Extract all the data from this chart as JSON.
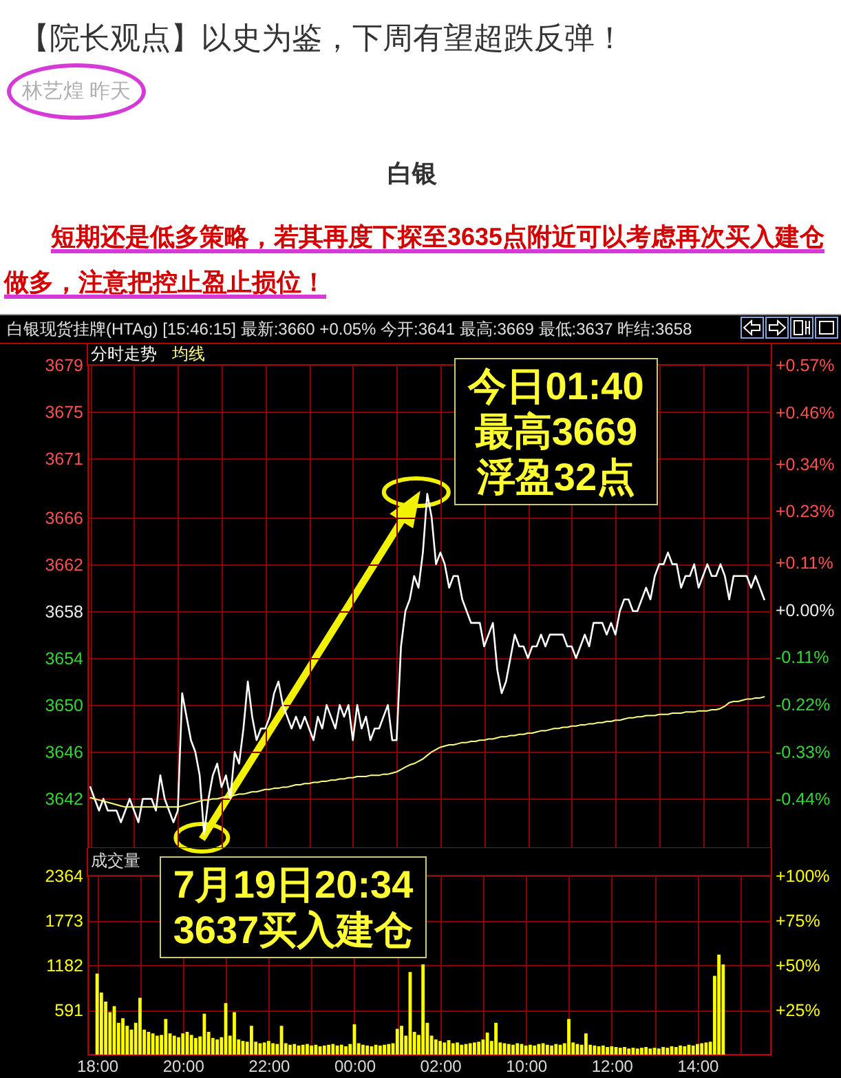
{
  "chart_data": [
    {
      "type": "line",
      "title": "【院长观点】以史为鉴，下周有望超跌反弹！",
      "subtitle": "白银",
      "annotations": [
        "林艺煌 昨天",
        "短期还是低多策略，若其再度下探至3635点附近可以考虑再次买入建仓做多，注意把控止盈止损位！",
        "白银现货挂牌(HTAg) [15:46:15] 最新:3660 +0.05% 今开:3641 最高:3669 最低:3637 昨结:3658",
        "今日01:40\n最高3669\n浮盈32点",
        "7月19日20:34\n3637买入建仓"
      ],
      "categories": [
        null,
        null,
        null,
        null,
        null,
        null,
        null,
        null,
        null,
        null,
        null,
        null,
        null,
        null,
        null,
        null,
        null,
        null,
        null,
        null,
        null,
        null,
        null,
        null,
        null,
        null,
        null,
        null,
        null,
        null,
        null,
        null,
        null,
        null,
        null,
        null,
        null,
        null,
        null,
        null,
        null,
        null,
        null,
        null,
        null,
        null,
        null,
        null,
        null,
        null,
        null,
        null,
        null,
        null,
        null,
        null,
        null,
        null,
        null,
        null,
        null,
        null,
        null,
        null,
        null,
        null,
        null,
        null,
        null,
        null,
        null,
        null,
        null,
        null,
        null,
        null,
        null,
        null,
        null,
        null,
        null,
        null,
        null,
        null,
        null,
        null,
        null,
        null,
        null,
        null,
        null,
        null,
        null,
        null,
        null,
        null,
        null,
        null,
        null,
        null,
        null,
        null,
        null,
        null,
        null,
        null,
        null,
        null,
        null,
        null,
        null,
        null,
        null,
        null,
        null,
        null,
        null,
        null,
        null,
        null,
        null,
        null,
        null,
        null,
        null,
        null,
        null,
        null,
        null,
        null,
        null,
        null,
        null,
        null,
        null,
        null,
        null,
        null,
        null,
        null,
        null,
        null,
        null,
        null,
        null,
        null,
        null,
        null,
        null,
        null,
        null,
        null,
        null,
        null,
        null,
        null
      ],
      "series": [
        {
          "name": "分时走势",
          "color": "#ffffff",
          "values": [
            3643,
            3642,
            3641,
            3642,
            3641,
            3641,
            3641,
            3640,
            3641,
            3642,
            3641,
            3640,
            3642,
            3642,
            3642,
            3641,
            3644,
            3642,
            3641,
            3640,
            3641,
            3651,
            3649,
            3647,
            3646,
            3644,
            3639,
            3642,
            3644,
            3645,
            3643,
            3644,
            3642,
            3646,
            3645,
            3648,
            3652,
            3649,
            3647,
            3648,
            3648,
            3649,
            3651,
            3652,
            3650,
            3649,
            3648,
            3649,
            3648,
            3649,
            3648,
            3647,
            3649,
            3648,
            3650,
            3649,
            3648,
            3650,
            3649,
            3650,
            3647,
            3650,
            3648,
            3649,
            3647,
            3648,
            3648,
            3649,
            3650,
            3647,
            3647,
            3655,
            3658,
            3659,
            3661,
            3660,
            3663,
            3668,
            3666,
            3662,
            3663,
            3662,
            3660,
            3661,
            3661,
            3659,
            3658,
            3657,
            3657,
            3657,
            3655,
            3656,
            3657,
            3653,
            3651,
            3652,
            3654,
            3656,
            3655,
            3655,
            3654,
            3655,
            3655,
            3656,
            3655,
            3656,
            3656,
            3656,
            3656,
            3655,
            3655,
            3654,
            3655,
            3656,
            3655,
            3657,
            3657,
            3657,
            3656,
            3657,
            3656,
            3658,
            3659,
            3659,
            3658,
            3658,
            3659,
            3660,
            3659,
            3661,
            3662,
            3662,
            3663,
            3662,
            3662,
            3660,
            3661,
            3661,
            3662,
            3660,
            3661,
            3662,
            3661,
            3661,
            3662,
            3661,
            3659,
            3661,
            3661,
            3661,
            3661,
            3660,
            3661,
            3660,
            3659,
            null
          ]
        },
        {
          "name": "均线",
          "color": "#ffff80",
          "values": [
            3642.1,
            3642,
            3641.9,
            3641.8,
            3641.7,
            3641.6,
            3641.5,
            3641.4,
            3641.3,
            3641.3,
            3641.3,
            3641.3,
            3641.3,
            3641.3,
            3641.3,
            3641.3,
            3641.3,
            3641.3,
            3641.3,
            3641.3,
            3641.3,
            3641.4,
            3641.5,
            3641.6,
            3641.7,
            3641.8,
            3641.9,
            3641.9,
            3642,
            3642,
            3642.1,
            3642.2,
            3642.2,
            3642.3,
            3642.4,
            3642.4,
            3642.5,
            3642.6,
            3642.6,
            3642.7,
            3642.8,
            3642.8,
            3642.9,
            3642.9,
            3643,
            3643,
            3643.1,
            3643.2,
            3643.2,
            3643.3,
            3643.3,
            3643.4,
            3643.4,
            3643.5,
            3643.5,
            3643.6,
            3643.6,
            3643.7,
            3643.7,
            3643.8,
            3643.8,
            3643.9,
            3643.9,
            3643.9,
            3644,
            3644,
            3644,
            3644.1,
            3644.1,
            3644.2,
            3644.3,
            3644.5,
            3644.7,
            3644.9,
            3645,
            3645.2,
            3645.4,
            3645.7,
            3646,
            3646.2,
            3646.4,
            3646.5,
            3646.6,
            3646.6,
            3646.7,
            3646.8,
            3646.8,
            3646.9,
            3646.9,
            3647,
            3647,
            3647.1,
            3647.1,
            3647.2,
            3647.3,
            3647.3,
            3647.4,
            3647.4,
            3647.5,
            3647.5,
            3647.6,
            3647.6,
            3647.7,
            3647.8,
            3647.8,
            3647.9,
            3648,
            3648,
            3648.1,
            3648.1,
            3648.2,
            3648.2,
            3648.3,
            3648.3,
            3648.4,
            3648.4,
            3648.5,
            3648.5,
            3648.6,
            3648.6,
            3648.7,
            3648.7,
            3648.8,
            3648.9,
            3648.9,
            3649,
            3649,
            3649.1,
            3649.1,
            3649.1,
            3649.2,
            3649.2,
            3649.2,
            3649.3,
            3649.3,
            3649.3,
            3649.4,
            3649.4,
            3649.4,
            3649.5,
            3649.5,
            3649.5,
            3649.6,
            3649.6,
            3649.7,
            3649.9,
            3650.2,
            3650.3,
            3650.3,
            3650.4,
            3650.5,
            3650.5,
            3650.6,
            3650.6,
            3650.7,
            null
          ]
        }
      ],
      "ylim": [
        3637.8,
        3679
      ],
      "yticks": [
        3642,
        3646,
        3650,
        3654,
        3658,
        3662,
        3666,
        3671,
        3675,
        3679
      ],
      "y2lim": [
        -0.5547,
        0.57
      ],
      "y2ticks": [
        {
          "value": -0.44,
          "label": "-0.44%"
        },
        {
          "value": -0.33,
          "label": "-0.33%"
        },
        {
          "value": -0.22,
          "label": "-0.22%"
        },
        {
          "value": -0.11,
          "label": "-0.11%"
        },
        {
          "value": 0,
          "label": "+0.00%"
        },
        {
          "value": 0.11,
          "label": "+0.11%"
        },
        {
          "value": 0.23,
          "label": "+0.23%"
        },
        {
          "value": 0.34,
          "label": "+0.34%"
        },
        {
          "value": 0.46,
          "label": "+0.46%"
        },
        {
          "value": 0.57,
          "label": "+0.57%"
        }
      ],
      "grid": true,
      "legend": "top left",
      "tick_labels": "y"
    },
    {
      "type": "bar",
      "title": "成交量",
      "color": "#ffff00",
      "categories": [
        "18:00",
        null,
        null,
        null,
        null,
        null,
        null,
        null,
        null,
        null,
        null,
        null,
        null,
        null,
        null,
        null,
        null,
        null,
        null,
        null,
        "20:00",
        null,
        null,
        null,
        null,
        null,
        null,
        null,
        null,
        null,
        null,
        null,
        null,
        null,
        null,
        null,
        null,
        null,
        null,
        null,
        "22:00",
        null,
        null,
        null,
        null,
        null,
        null,
        null,
        null,
        null,
        null,
        null,
        null,
        null,
        null,
        null,
        null,
        null,
        null,
        null,
        "00:00",
        null,
        null,
        null,
        null,
        null,
        null,
        null,
        null,
        null,
        null,
        null,
        null,
        null,
        null,
        null,
        null,
        null,
        null,
        null,
        "02:00",
        null,
        null,
        null,
        null,
        null,
        null,
        null,
        null,
        null,
        null,
        null,
        null,
        null,
        null,
        null,
        null,
        null,
        null,
        null,
        "10:00",
        null,
        null,
        null,
        null,
        null,
        null,
        null,
        null,
        null,
        null,
        null,
        null,
        null,
        null,
        null,
        null,
        null,
        null,
        null,
        "12:00",
        null,
        null,
        null,
        null,
        null,
        null,
        null,
        null,
        null,
        null,
        null,
        null,
        null,
        null,
        null,
        null,
        null,
        null,
        null,
        "14:00",
        null,
        null,
        null,
        null,
        null,
        null,
        null,
        null,
        null,
        null,
        null,
        null,
        null,
        null,
        null
      ],
      "values": [
        1070,
        820,
        700,
        560,
        640,
        420,
        480,
        380,
        330,
        420,
        750,
        330,
        300,
        280,
        250,
        260,
        470,
        280,
        250,
        230,
        280,
        300,
        260,
        220,
        240,
        540,
        300,
        220,
        200,
        230,
        680,
        250,
        560,
        200,
        180,
        170,
        380,
        170,
        150,
        160,
        180,
        150,
        140,
        380,
        150,
        130,
        140,
        120,
        130,
        140,
        120,
        130,
        110,
        120,
        130,
        140,
        120,
        130,
        110,
        140,
        400,
        150,
        130,
        120,
        110,
        130,
        120,
        130,
        140,
        150,
        340,
        380,
        250,
        1090,
        300,
        260,
        1190,
        420,
        250,
        200,
        180,
        160,
        190,
        150,
        160,
        130,
        140,
        150,
        160,
        170,
        200,
        290,
        180,
        420,
        160,
        150,
        140,
        130,
        150,
        140,
        120,
        130,
        120,
        140,
        150,
        130,
        120,
        140,
        130,
        150,
        470,
        160,
        140,
        130,
        280,
        130,
        120,
        110,
        120,
        100,
        110,
        100,
        90,
        100,
        80,
        90,
        80,
        90,
        100,
        80,
        90,
        80,
        100,
        90,
        110,
        100,
        120,
        110,
        130,
        120,
        140,
        150,
        160,
        170,
        1040,
        1320,
        1190,
        null,
        null,
        null,
        null,
        null,
        null,
        null,
        null,
        null
      ],
      "ylim": [
        0,
        2364
      ],
      "yticks": [
        591,
        1182,
        1773,
        2364
      ],
      "y2lim": [
        0,
        100
      ],
      "y2ticks": [
        {
          "value": 25,
          "label": "+25%"
        },
        {
          "value": 50,
          "label": "+50%"
        },
        {
          "value": 75,
          "label": "+75%"
        },
        {
          "value": 100,
          "label": "+100%"
        }
      ],
      "grid": true
    }
  ]
}
